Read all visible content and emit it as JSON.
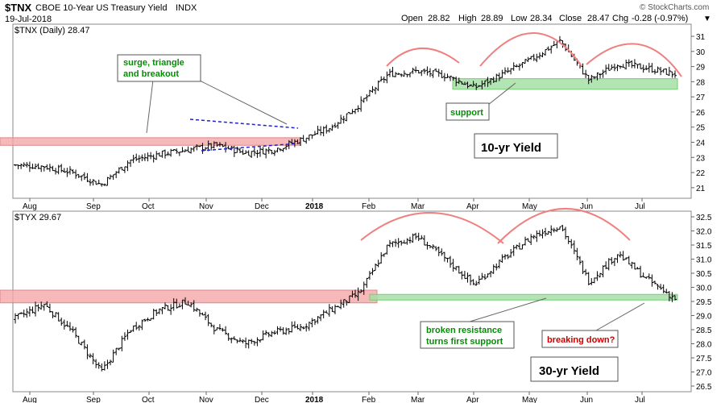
{
  "header": {
    "symbol": "$TNX",
    "name": "CBOE 10-Year US Treasury Yield",
    "exchange": "INDX",
    "date": "19-Jul-2018",
    "open_label": "Open",
    "open": "28.82",
    "high_label": "High",
    "high": "28.89",
    "low_label": "Low",
    "low": "28.34",
    "close_label": "Close",
    "close": "28.47",
    "chg_label": "Chg",
    "chg": "-0.28 (-0.97%)",
    "watermark": "© StockCharts.com"
  },
  "colors": {
    "resistance_zone": "#f4a6a6",
    "support_zone": "#a6dfa6",
    "arc": "#f08080",
    "triangle": "#2020d0",
    "bars": "#000000",
    "callout_green_text": "#0a8a0a",
    "callout_red_text": "#cc0000"
  },
  "x_axis": {
    "months": [
      "Aug",
      "Sep",
      "Oct",
      "Nov",
      "Dec",
      "2018",
      "Feb",
      "Mar",
      "Apr",
      "May",
      "Jun",
      "Jul"
    ]
  },
  "chart_data": [
    {
      "type": "ohlc",
      "panel": "top",
      "title": "$TNX (Daily) 28.47",
      "y_axis_side": "right",
      "ylim": [
        20.3,
        31.8
      ],
      "yticks": [
        21,
        22,
        23,
        24,
        25,
        26,
        27,
        28,
        29,
        30,
        31
      ],
      "label": "10-yr Yield",
      "month_index": [
        0,
        1,
        2,
        3,
        4,
        5,
        6,
        7,
        8,
        9,
        10,
        11
      ],
      "approx_closes": [
        22.5,
        22.4,
        22.0,
        21.2,
        22.8,
        23.2,
        23.5,
        23.8,
        23.3,
        23.5,
        24.2,
        25.0,
        26.5,
        28.5,
        28.7,
        28.4,
        27.6,
        28.5,
        29.5,
        30.7,
        28.1,
        29.2,
        28.9,
        28.5
      ],
      "resistance_zone": [
        23.8,
        24.3
      ],
      "support_zone": [
        27.5,
        28.2
      ],
      "annotations": [
        "surge, triangle and breakout",
        "support"
      ]
    },
    {
      "type": "ohlc",
      "panel": "bottom",
      "title": "$TYX 29.67",
      "y_axis_side": "right",
      "ylim": [
        26.3,
        32.7
      ],
      "yticks": [
        26.5,
        27.0,
        27.5,
        28.0,
        28.5,
        29.0,
        29.5,
        30.0,
        30.5,
        31.0,
        31.5,
        32.0,
        32.5
      ],
      "label": "30-yr Yield",
      "approx_closes": [
        28.9,
        29.4,
        28.4,
        27.0,
        28.5,
        29.2,
        29.5,
        28.5,
        28.0,
        28.4,
        28.6,
        29.2,
        29.8,
        31.5,
        31.8,
        31.0,
        30.1,
        31.0,
        31.8,
        32.2,
        30.2,
        31.2,
        30.3,
        29.6
      ],
      "resistance_zone": [
        29.45,
        29.9
      ],
      "support_zone": [
        29.55,
        29.75
      ],
      "annotations": [
        "broken resistance turns first support",
        "breaking down?"
      ]
    }
  ]
}
